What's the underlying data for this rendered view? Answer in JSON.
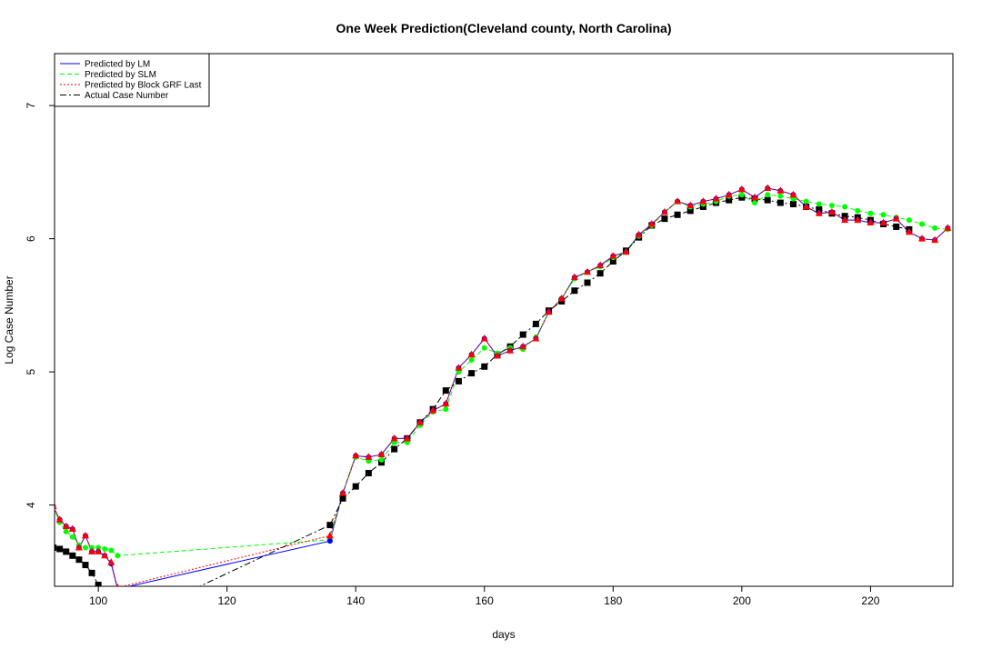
{
  "chart_data": {
    "type": "line",
    "title": "One Week Prediction(Cleveland county, North Carolina)",
    "x_label": "days",
    "y_label": "Log Case Number",
    "x": [
      93,
      94,
      95,
      96,
      97,
      98,
      99,
      100,
      101,
      102,
      103,
      136,
      138,
      140,
      142,
      144,
      146,
      148,
      150,
      152,
      154,
      156,
      158,
      160,
      162,
      164,
      166,
      168,
      170,
      172,
      174,
      176,
      178,
      180,
      182,
      184,
      186,
      188,
      190,
      192,
      194,
      196,
      198,
      200,
      202,
      204,
      206,
      208,
      210,
      212,
      214,
      216,
      218,
      220,
      222,
      224,
      226,
      228,
      230,
      232
    ],
    "series": [
      {
        "name": "Predicted by LM",
        "color": "#0000ff",
        "line_style": "solid",
        "marker": "circle",
        "values": [
          3.99,
          3.89,
          3.84,
          3.82,
          3.68,
          3.77,
          3.65,
          3.65,
          3.62,
          3.56,
          3.37,
          3.73,
          4.09,
          4.37,
          4.36,
          4.38,
          4.5,
          4.5,
          4.62,
          4.71,
          4.76,
          5.03,
          5.13,
          5.25,
          5.12,
          5.16,
          5.19,
          5.25,
          5.45,
          5.55,
          5.71,
          5.75,
          5.8,
          5.87,
          5.9,
          6.03,
          6.11,
          6.2,
          6.28,
          6.25,
          6.28,
          6.3,
          6.33,
          6.37,
          6.31,
          6.38,
          6.36,
          6.33,
          6.24,
          6.19,
          6.2,
          6.14,
          6.14,
          6.12,
          6.12,
          6.15,
          6.05,
          6.0,
          5.99,
          6.08
        ]
      },
      {
        "name": "Predicted by SLM",
        "color": "#00ff00",
        "line_style": "dashed",
        "marker": "circle",
        "values": [
          3.99,
          3.87,
          3.8,
          3.76,
          3.7,
          3.68,
          3.68,
          3.68,
          3.67,
          3.66,
          3.62,
          3.74,
          4.09,
          4.36,
          4.33,
          4.34,
          4.47,
          4.47,
          4.6,
          4.7,
          4.72,
          5.0,
          5.09,
          5.18,
          5.14,
          5.18,
          5.17,
          5.26,
          5.45,
          5.55,
          5.7,
          5.75,
          5.79,
          5.86,
          5.9,
          6.02,
          6.1,
          6.2,
          6.28,
          6.24,
          6.26,
          6.28,
          6.32,
          6.33,
          6.27,
          6.33,
          6.32,
          6.3,
          6.28,
          6.26,
          6.25,
          6.24,
          6.21,
          6.19,
          6.18,
          6.16,
          6.14,
          6.11,
          6.08,
          6.07
        ]
      },
      {
        "name": "Predicted by Block GRF Last",
        "color": "#ff0000",
        "line_style": "dotted",
        "marker": "triangle",
        "values": [
          3.99,
          3.89,
          3.84,
          3.82,
          3.68,
          3.77,
          3.65,
          3.65,
          3.62,
          3.57,
          3.38,
          3.77,
          4.09,
          4.37,
          4.36,
          4.38,
          4.5,
          4.5,
          4.62,
          4.71,
          4.76,
          5.03,
          5.13,
          5.25,
          5.12,
          5.16,
          5.19,
          5.25,
          5.45,
          5.55,
          5.71,
          5.75,
          5.8,
          5.87,
          5.9,
          6.03,
          6.11,
          6.2,
          6.28,
          6.25,
          6.28,
          6.3,
          6.33,
          6.37,
          6.31,
          6.38,
          6.36,
          6.33,
          6.24,
          6.19,
          6.2,
          6.14,
          6.14,
          6.12,
          6.12,
          6.15,
          6.05,
          6.0,
          5.99,
          6.08
        ]
      },
      {
        "name": "Actual Case Number",
        "color": "#000000",
        "line_style": "dashdot",
        "marker": "square",
        "values": [
          3.68,
          3.67,
          3.65,
          3.62,
          3.59,
          3.55,
          3.49,
          3.4,
          3.3,
          3.2,
          3.1,
          3.85,
          4.05,
          4.14,
          4.24,
          4.32,
          4.42,
          4.5,
          4.62,
          4.72,
          4.86,
          4.93,
          4.99,
          5.04,
          5.13,
          5.19,
          5.28,
          5.36,
          5.46,
          5.53,
          5.61,
          5.67,
          5.74,
          5.83,
          5.91,
          6.01,
          6.1,
          6.15,
          6.18,
          6.21,
          6.24,
          6.27,
          6.29,
          6.31,
          6.3,
          6.29,
          6.27,
          6.26,
          6.24,
          6.22,
          6.19,
          6.17,
          6.16,
          6.14,
          6.11,
          6.09,
          6.07,
          null,
          null,
          null
        ]
      }
    ],
    "xlim": [
      93.2,
      232.8
    ],
    "ylim": [
      3.39,
      7.39
    ],
    "xticks": [
      100,
      120,
      140,
      160,
      180,
      200,
      220
    ],
    "yticks": [
      4,
      5,
      6,
      7
    ],
    "legend": "top-left"
  }
}
